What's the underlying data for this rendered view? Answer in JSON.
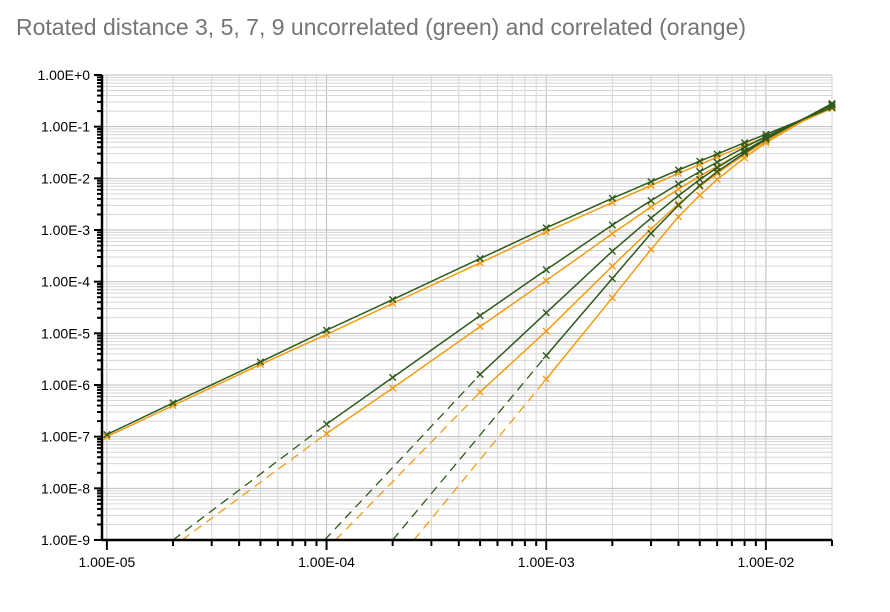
{
  "chart_data": {
    "type": "line",
    "title": "Rotated distance 3, 5, 7, 9 uncorrelated (green) and correlated (orange)",
    "xlabel": "",
    "ylabel": "",
    "x_scale": "log",
    "y_scale": "log",
    "xlim": [
      9.5e-06,
      0.02
    ],
    "ylim": [
      1e-09,
      1
    ],
    "x_tick_labels": [
      {
        "value": 1e-05,
        "label": "1.00E-05"
      },
      {
        "value": 0.0001,
        "label": "1.00E-04"
      },
      {
        "value": 0.001,
        "label": "1.00E-03"
      },
      {
        "value": 0.01,
        "label": "1.00E-02"
      }
    ],
    "y_tick_labels": [
      {
        "value": 1,
        "label": "1.00E+0"
      },
      {
        "value": 0.1,
        "label": "1.00E-1"
      },
      {
        "value": 0.01,
        "label": "1.00E-2"
      },
      {
        "value": 0.001,
        "label": "1.00E-3"
      },
      {
        "value": 0.0001,
        "label": "1.00E-4"
      },
      {
        "value": 1e-05,
        "label": "1.00E-5"
      },
      {
        "value": 1e-06,
        "label": "1.00E-6"
      },
      {
        "value": 1e-07,
        "label": "1.00E-7"
      },
      {
        "value": 1e-08,
        "label": "1.00E-8"
      },
      {
        "value": 1e-09,
        "label": "1.00E-9"
      }
    ],
    "grid": true,
    "legend": "none",
    "colors": {
      "uncorrelated": "#2e5a1c",
      "correlated": "#f39c12",
      "grid": "#d6d6d6",
      "grid_major": "#bdbdbd"
    },
    "series": [
      {
        "group": "uncorrelated",
        "distance": 3,
        "x": [
          1e-05,
          2e-05,
          5e-05,
          0.0001,
          0.0002,
          0.0005,
          0.001,
          0.002,
          0.003,
          0.004,
          0.005,
          0.006,
          0.008,
          0.01,
          0.02
        ],
        "y": [
          1.1e-07,
          4.5e-07,
          2.8e-06,
          1.15e-05,
          4.5e-05,
          0.00028,
          0.0011,
          0.0041,
          0.0086,
          0.0145,
          0.0215,
          0.0295,
          0.049,
          0.071,
          0.235
        ]
      },
      {
        "group": "correlated",
        "distance": 3,
        "x": [
          1e-05,
          2e-05,
          5e-05,
          0.0001,
          0.0002,
          0.0005,
          0.001,
          0.002,
          0.003,
          0.004,
          0.005,
          0.006,
          0.008,
          0.01,
          0.02
        ],
        "y": [
          1e-07,
          4e-07,
          2.5e-06,
          9.5e-06,
          3.8e-05,
          0.00023,
          0.00092,
          0.0034,
          0.0073,
          0.0125,
          0.0185,
          0.026,
          0.043,
          0.063,
          0.225
        ]
      },
      {
        "group": "uncorrelated",
        "distance": 5,
        "x": [
          0.0001,
          0.0002,
          0.0005,
          0.001,
          0.002,
          0.003,
          0.004,
          0.005,
          0.006,
          0.008,
          0.01,
          0.02
        ],
        "y": [
          1.75e-07,
          1.4e-06,
          2.2e-05,
          0.00017,
          0.00125,
          0.0037,
          0.0078,
          0.0135,
          0.0205,
          0.04,
          0.064,
          0.26
        ],
        "extrapolated": {
          "x": [
            2e-05,
            0.0001
          ],
          "y": [
            1e-09,
            1.75e-07
          ]
        }
      },
      {
        "group": "correlated",
        "distance": 5,
        "x": [
          0.0001,
          0.0002,
          0.0005,
          0.001,
          0.002,
          0.003,
          0.004,
          0.005,
          0.006,
          0.008,
          0.01,
          0.02
        ],
        "y": [
          1.15e-07,
          8.7e-07,
          1.35e-05,
          0.000105,
          0.00085,
          0.0028,
          0.0062,
          0.011,
          0.017,
          0.034,
          0.056,
          0.245
        ],
        "extrapolated": {
          "x": [
            2.2e-05,
            0.0001
          ],
          "y": [
            1e-09,
            1.15e-07
          ]
        }
      },
      {
        "group": "uncorrelated",
        "distance": 7,
        "x": [
          0.0005,
          0.001,
          0.002,
          0.003,
          0.004,
          0.005,
          0.006,
          0.008,
          0.01,
          0.02
        ],
        "y": [
          1.6e-06,
          2.5e-05,
          0.00039,
          0.0017,
          0.0046,
          0.0095,
          0.016,
          0.034,
          0.059,
          0.27
        ],
        "extrapolated": {
          "x": [
            9.8e-05,
            0.0005
          ],
          "y": [
            1e-09,
            1.6e-06
          ]
        }
      },
      {
        "group": "correlated",
        "distance": 7,
        "x": [
          0.0005,
          0.001,
          0.002,
          0.003,
          0.004,
          0.005,
          0.006,
          0.008,
          0.01,
          0.02
        ],
        "y": [
          7.3e-07,
          1.1e-05,
          0.0002,
          0.00105,
          0.0032,
          0.007,
          0.0125,
          0.029,
          0.053,
          0.26
        ],
        "extrapolated": {
          "x": [
            0.00011,
            0.0005
          ],
          "y": [
            1e-09,
            7.3e-07
          ]
        }
      },
      {
        "group": "uncorrelated",
        "distance": 9,
        "x": [
          0.001,
          0.002,
          0.003,
          0.004,
          0.005,
          0.006,
          0.008,
          0.01,
          0.02
        ],
        "y": [
          3.7e-06,
          0.000115,
          0.00086,
          0.003,
          0.0073,
          0.0135,
          0.031,
          0.057,
          0.28
        ],
        "extrapolated": {
          "x": [
            0.0002,
            0.001
          ],
          "y": [
            1e-09,
            3.7e-06
          ]
        }
      },
      {
        "group": "correlated",
        "distance": 9,
        "x": [
          0.001,
          0.002,
          0.003,
          0.004,
          0.005,
          0.006,
          0.008,
          0.01,
          0.02
        ],
        "y": [
          1.3e-06,
          4.9e-05,
          0.00042,
          0.0018,
          0.0047,
          0.0095,
          0.025,
          0.049,
          0.275
        ],
        "extrapolated": {
          "x": [
            0.00025,
            0.001
          ],
          "y": [
            1e-09,
            1.3e-06
          ]
        }
      }
    ]
  }
}
